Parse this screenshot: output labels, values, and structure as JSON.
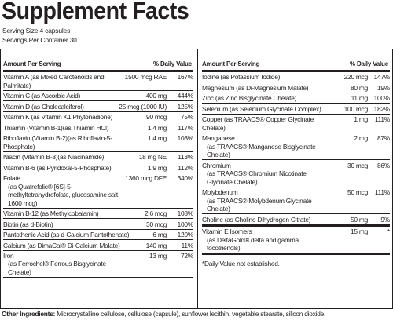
{
  "title": "Supplement Facts",
  "serving_size": "Serving Size 4 capsules",
  "servings_per_container": "Servings Per Container 30",
  "header": {
    "amount": "Amount Per Serving",
    "dv": "% Daily Value"
  },
  "left_rows": [
    {
      "name": "Vitamin A (as Mixed Carotenoids and Palmitate)",
      "amount": "1500 mcg RAE",
      "dv": "167%"
    },
    {
      "name": "Vitamin C (as Ascorbic Acid)",
      "amount": "400 mg",
      "dv": "444%"
    },
    {
      "name": "Vitamin D (as Cholecalciferol)",
      "amount": "25 mcg (1000 IU)",
      "dv": "125%"
    },
    {
      "name": "Vitamin K (as Vitamin K1 Phytonadione)",
      "amount": "90 mcg",
      "dv": "75%"
    },
    {
      "name": "Thiamin (Vitamin B-1)(as Thiamin HCl)",
      "amount": "1.4 mg",
      "dv": "117%"
    },
    {
      "name": "Riboflavin (Vitamin B-2)(as Riboflavin-5-Phosphate)",
      "amount": "1.4 mg",
      "dv": "108%"
    },
    {
      "name": "Niacin (Vitamin B-3)(as Niacinamide)",
      "amount": "18 mg NE",
      "dv": "113%"
    },
    {
      "name": "Vitamin B-6 (as Pyridoxal-5-Phosphate)",
      "amount": "1.9 mg",
      "dv": "112%"
    },
    {
      "name": "Folate",
      "sub": "(as Quatrefolic® [6S]-5-methyltetrahydrofolate, glucosamine salt 1600 mcg)",
      "amount": "1360 mcg DFE",
      "dv": "340%"
    },
    {
      "name": "Vitamin B-12 (as Methylcobalamin)",
      "amount": "2.6 mcg",
      "dv": "108%"
    },
    {
      "name": "Biotin (as d-Biotin)",
      "amount": "30 mcg",
      "dv": "100%"
    },
    {
      "name": "Pantothenic Acid (as d-Calcium Pantothenate)",
      "amount": "6 mg",
      "dv": "120%"
    },
    {
      "name": "Calcium (as DimaCal® Di-Calcium Malate)",
      "amount": "140 mg",
      "dv": "11%"
    },
    {
      "name": "Iron",
      "sub": "(as Ferrochel® Ferrous Bisglycinate Chelate)",
      "amount": "13 mg",
      "dv": "72%"
    }
  ],
  "right_rows": [
    {
      "name": "Iodine (as Potassium Iodide)",
      "amount": "220 mcg",
      "dv": "147%"
    },
    {
      "name": "Magnesium (as Di-Magnesium Malate)",
      "amount": "80 mg",
      "dv": "19%"
    },
    {
      "name": "Zinc (as Zinc Bisglycinate Chelate)",
      "amount": "11 mg",
      "dv": "100%"
    },
    {
      "name": "Selenium (as Selenium Glycinate Complex)",
      "amount": "100 mcg",
      "dv": "182%"
    },
    {
      "name": "Copper (as TRAACS® Copper Glycinate Chelate)",
      "amount": "1 mg",
      "dv": "111%"
    },
    {
      "name": "Manganese",
      "sub": "(as TRAACS® Manganese Bisglycinate Chelate)",
      "amount": "2 mg",
      "dv": "87%"
    },
    {
      "name": "Chromium",
      "sub": "(as TRAACS® Chromium Nicotinate Glycinate Chelate)",
      "amount": "30 mcg",
      "dv": "86%"
    },
    {
      "name": "Molybdenum",
      "sub": "(as TRAACS® Molybdenum Glycinate Chelate)",
      "amount": "50 mcg",
      "dv": "111%"
    },
    {
      "name": "Choline (as Choline Dihydrogen Citrate)",
      "amount": "50 mg",
      "dv": "9%"
    },
    {
      "name": "Vitamin E Isomers",
      "sub": "(as DeltaGold® delta and gamma tocotrienols)",
      "amount": "15 mg",
      "dv": "*"
    }
  ],
  "footnote": "*Daily Value not established.",
  "other_ingredients": {
    "label": "Other Ingredients:",
    "text": "Microcrystalline cellulose, cellulose (capsule), sunflower lecithin, vegetable stearate, silicon dioxide."
  }
}
